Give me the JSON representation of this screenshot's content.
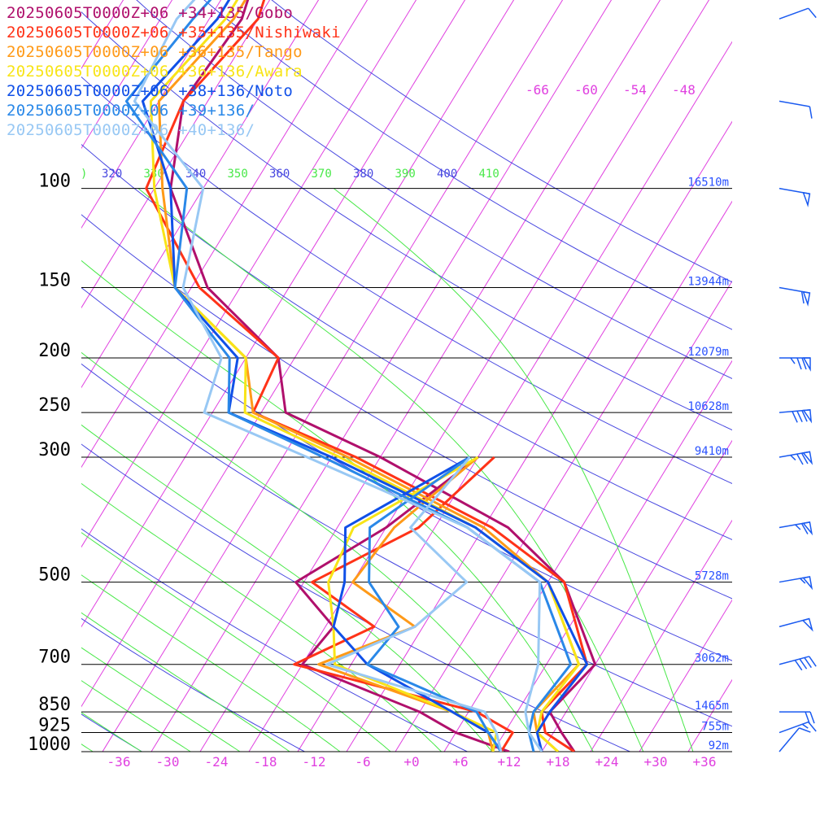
{
  "chart_data": {
    "type": "line",
    "subtype": "skew-T log-P sounding diagram",
    "series": [
      {
        "name": "20250605T0000Z+06 +34+135/Gobo",
        "color": "#b0106c",
        "temperature": [
          [
            1000,
            20
          ],
          [
            925,
            17
          ],
          [
            850,
            14
          ],
          [
            700,
            16
          ],
          [
            500,
            6
          ],
          [
            400,
            -5
          ],
          [
            300,
            -26
          ],
          [
            250,
            -41
          ],
          [
            200,
            -46
          ],
          [
            150,
            -60
          ],
          [
            100,
            -72
          ],
          [
            70,
            -77
          ],
          [
            50,
            -76
          ],
          [
            40,
            -78
          ]
        ],
        "dewpoint": [
          [
            1000,
            12
          ],
          [
            925,
            4
          ],
          [
            850,
            -2
          ],
          [
            700,
            -20
          ],
          [
            600,
            -19
          ],
          [
            500,
            -27
          ],
          [
            400,
            -20
          ],
          [
            300,
            -14
          ]
        ]
      },
      {
        "name": "20250605T0000Z+06 +35+135/Nishiwaki",
        "color": "#ff3318",
        "temperature": [
          [
            1000,
            20
          ],
          [
            925,
            15
          ],
          [
            850,
            13
          ],
          [
            700,
            15
          ],
          [
            500,
            6
          ],
          [
            400,
            -7
          ],
          [
            300,
            -29
          ],
          [
            250,
            -45
          ],
          [
            200,
            -46
          ],
          [
            150,
            -61
          ],
          [
            100,
            -75
          ],
          [
            70,
            -77
          ],
          [
            50,
            -74
          ],
          [
            40,
            -76
          ]
        ],
        "dewpoint": [
          [
            1000,
            11
          ],
          [
            925,
            11
          ],
          [
            850,
            5
          ],
          [
            700,
            -21
          ],
          [
            600,
            -14
          ],
          [
            500,
            -25
          ],
          [
            400,
            -16
          ],
          [
            300,
            -12
          ]
        ]
      },
      {
        "name": "20250605T0000Z+06 +36+135/Tango",
        "color": "#ff9a18",
        "temperature": [
          [
            1000,
            18
          ],
          [
            925,
            14
          ],
          [
            850,
            12
          ],
          [
            700,
            14
          ],
          [
            500,
            4
          ],
          [
            400,
            -8
          ],
          [
            300,
            -30
          ],
          [
            250,
            -45
          ],
          [
            200,
            -50
          ],
          [
            150,
            -64
          ],
          [
            100,
            -73
          ],
          [
            70,
            -80
          ],
          [
            50,
            -77
          ],
          [
            40,
            -77
          ]
        ],
        "dewpoint": [
          [
            1000,
            10
          ],
          [
            925,
            8
          ],
          [
            850,
            2
          ],
          [
            700,
            -18
          ],
          [
            600,
            -9
          ],
          [
            500,
            -20
          ],
          [
            400,
            -19
          ],
          [
            300,
            -14
          ]
        ]
      },
      {
        "name": "20250605T0000Z+06 +36+136/Awara",
        "color": "#f8e418",
        "temperature": [
          [
            1000,
            18
          ],
          [
            925,
            14
          ],
          [
            850,
            13
          ],
          [
            700,
            14
          ],
          [
            500,
            4
          ],
          [
            400,
            -9
          ],
          [
            300,
            -31
          ],
          [
            250,
            -46
          ],
          [
            200,
            -50
          ],
          [
            150,
            -64
          ],
          [
            100,
            -74
          ],
          [
            70,
            -81
          ],
          [
            50,
            -78
          ],
          [
            40,
            -78
          ]
        ],
        "dewpoint": [
          [
            1000,
            10
          ],
          [
            925,
            9
          ],
          [
            850,
            2
          ],
          [
            700,
            -16
          ],
          [
            600,
            -19
          ],
          [
            500,
            -23
          ],
          [
            400,
            -24
          ],
          [
            300,
            -14
          ]
        ]
      },
      {
        "name": "20250605T0000Z+06 +38+136/Noto",
        "color": "#1050e8",
        "temperature": [
          [
            1000,
            16
          ],
          [
            925,
            14
          ],
          [
            850,
            14
          ],
          [
            700,
            15
          ],
          [
            500,
            4
          ],
          [
            400,
            -9
          ],
          [
            300,
            -32
          ],
          [
            250,
            -48
          ],
          [
            200,
            -51
          ],
          [
            150,
            -64
          ],
          [
            100,
            -72
          ],
          [
            70,
            -82
          ],
          [
            50,
            -79
          ],
          [
            40,
            -79
          ]
        ],
        "dewpoint": [
          [
            1000,
            11
          ],
          [
            925,
            8
          ],
          [
            850,
            2
          ],
          [
            700,
            -12
          ],
          [
            600,
            -19
          ],
          [
            500,
            -21
          ],
          [
            400,
            -25
          ],
          [
            300,
            -15
          ]
        ]
      },
      {
        "name": "20250605T0000Z+06 +39+136/",
        "color": "#2a88e8",
        "temperature": [
          [
            1000,
            15
          ],
          [
            925,
            13
          ],
          [
            850,
            12
          ],
          [
            700,
            13
          ],
          [
            500,
            3
          ],
          [
            400,
            -10
          ],
          [
            300,
            -33
          ],
          [
            250,
            -48
          ],
          [
            200,
            -52
          ],
          [
            150,
            -64
          ],
          [
            100,
            -70
          ],
          [
            70,
            -84
          ],
          [
            50,
            -82
          ],
          [
            40,
            -80
          ]
        ],
        "dewpoint": [
          [
            1000,
            11
          ],
          [
            925,
            8
          ],
          [
            850,
            5
          ],
          [
            700,
            -12
          ],
          [
            600,
            -11
          ],
          [
            500,
            -18
          ],
          [
            400,
            -22
          ],
          [
            300,
            -15
          ]
        ]
      },
      {
        "name": "20250605T0000Z+06 +40+136/",
        "color": "#98c8f4",
        "temperature": [
          [
            1000,
            16
          ],
          [
            925,
            13
          ],
          [
            850,
            11
          ],
          [
            700,
            9
          ],
          [
            500,
            3
          ],
          [
            400,
            -10
          ],
          [
            300,
            -35
          ],
          [
            250,
            -51
          ],
          [
            200,
            -53
          ],
          [
            150,
            -63
          ],
          [
            100,
            -68
          ],
          [
            70,
            -83
          ],
          [
            50,
            -84
          ],
          [
            40,
            -82
          ]
        ],
        "dewpoint": [
          [
            1000,
            11
          ],
          [
            925,
            9
          ],
          [
            850,
            6
          ],
          [
            700,
            -17
          ],
          [
            600,
            -9
          ],
          [
            500,
            -6
          ],
          [
            400,
            -17
          ],
          [
            300,
            -15
          ]
        ]
      }
    ],
    "pressure_levels": [
      {
        "p": 100,
        "label": "100",
        "height": "16510m"
      },
      {
        "p": 150,
        "label": "150",
        "height": "13944m"
      },
      {
        "p": 200,
        "label": "200",
        "height": "12079m"
      },
      {
        "p": 250,
        "label": "250",
        "height": "10628m"
      },
      {
        "p": 300,
        "label": "300",
        "height": "9410m"
      },
      {
        "p": 500,
        "label": "500",
        "height": "5728m"
      },
      {
        "p": 700,
        "label": "700",
        "height": "3062m"
      },
      {
        "p": 850,
        "label": "850",
        "height": "1465m"
      },
      {
        "p": 925,
        "label": "925",
        "height": "755m"
      },
      {
        "p": 1000,
        "label": "1000",
        "height": "92m"
      }
    ],
    "x_ticks": [
      "-36",
      "-30",
      "-24",
      "-18",
      "-12",
      "-6",
      "+0",
      "+6",
      "+12",
      "+18",
      "+24",
      "+30",
      "+36"
    ],
    "x_tick_values": [
      -36,
      -30,
      -24,
      -18,
      -12,
      -6,
      0,
      6,
      12,
      18,
      24,
      30,
      36
    ],
    "upper_temp_labels": [
      "-66",
      "-60",
      "-54",
      "-48"
    ],
    "upper_temp_values": [
      -66,
      -60,
      -54,
      -48
    ],
    "theta_labels": [
      ")",
      "320",
      "330",
      "340",
      "350",
      "360",
      "370",
      "380",
      "390",
      "400",
      "410"
    ],
    "isotherm_range": [
      -110,
      50
    ],
    "xlim": [
      -40,
      40
    ],
    "plim": [
      1000,
      40
    ],
    "colors": {
      "isotherm": "#e040e0",
      "dry_adiabat": "#4848e0",
      "moist_adiabat": "#48e848",
      "isobar": "#000000",
      "height_label": "#2a52ff",
      "theta_green": "#48e848",
      "theta_blue": "#4848e0"
    },
    "wind_barbs": [
      {
        "p": 50,
        "speed": 10,
        "dir": 250
      },
      {
        "p": 70,
        "speed": 10,
        "dir": 280
      },
      {
        "p": 100,
        "speed": 50,
        "dir": 280
      },
      {
        "p": 150,
        "speed": 60,
        "dir": 280
      },
      {
        "p": 200,
        "speed": 75,
        "dir": 270
      },
      {
        "p": 250,
        "speed": 80,
        "dir": 265
      },
      {
        "p": 300,
        "speed": 75,
        "dir": 260
      },
      {
        "p": 400,
        "speed": 65,
        "dir": 260
      },
      {
        "p": 500,
        "speed": 55,
        "dir": 260
      },
      {
        "p": 600,
        "speed": 50,
        "dir": 255
      },
      {
        "p": 700,
        "speed": 40,
        "dir": 255
      },
      {
        "p": 850,
        "speed": 20,
        "dir": 270
      },
      {
        "p": 925,
        "speed": 15,
        "dir": 250
      },
      {
        "p": 1000,
        "speed": 10,
        "dir": 220
      }
    ]
  }
}
